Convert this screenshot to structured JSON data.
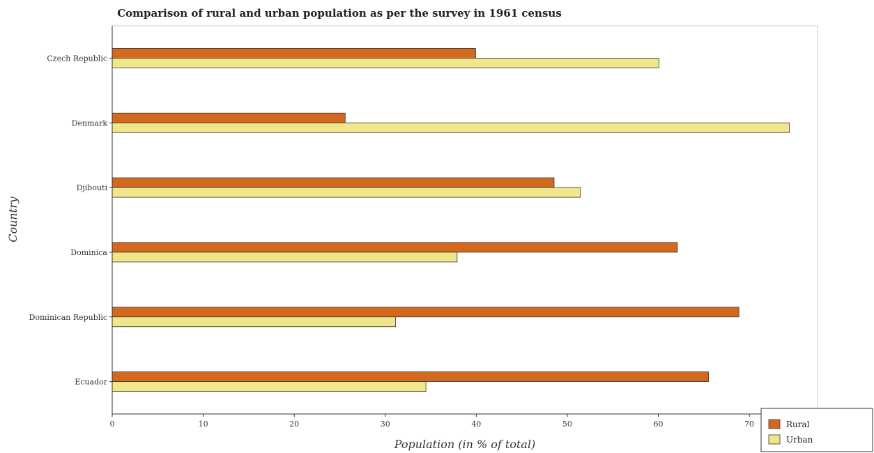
{
  "chart_data": {
    "type": "bar",
    "orientation": "horizontal",
    "title": "Comparison of rural and urban population as per the survey in 1961 census",
    "xlabel": "Population (in % of total)",
    "ylabel": "Country",
    "xlim": [
      0,
      77.5
    ],
    "xticks": [
      0,
      10,
      20,
      30,
      40,
      50,
      60,
      70
    ],
    "categories": [
      "Czech Republic",
      "Denmark",
      "Djibouti",
      "Dominica",
      "Dominican Republic",
      "Ecuador"
    ],
    "series": [
      {
        "name": "Rural",
        "color": "#d2691e",
        "values": [
          39.93,
          25.6,
          48.55,
          62.1,
          68.86,
          65.53
        ]
      },
      {
        "name": "Urban",
        "color": "#f0e68c",
        "values": [
          60.07,
          74.4,
          51.45,
          37.9,
          31.14,
          34.47
        ]
      }
    ],
    "legend_position": "bottom-right",
    "grid": false
  }
}
